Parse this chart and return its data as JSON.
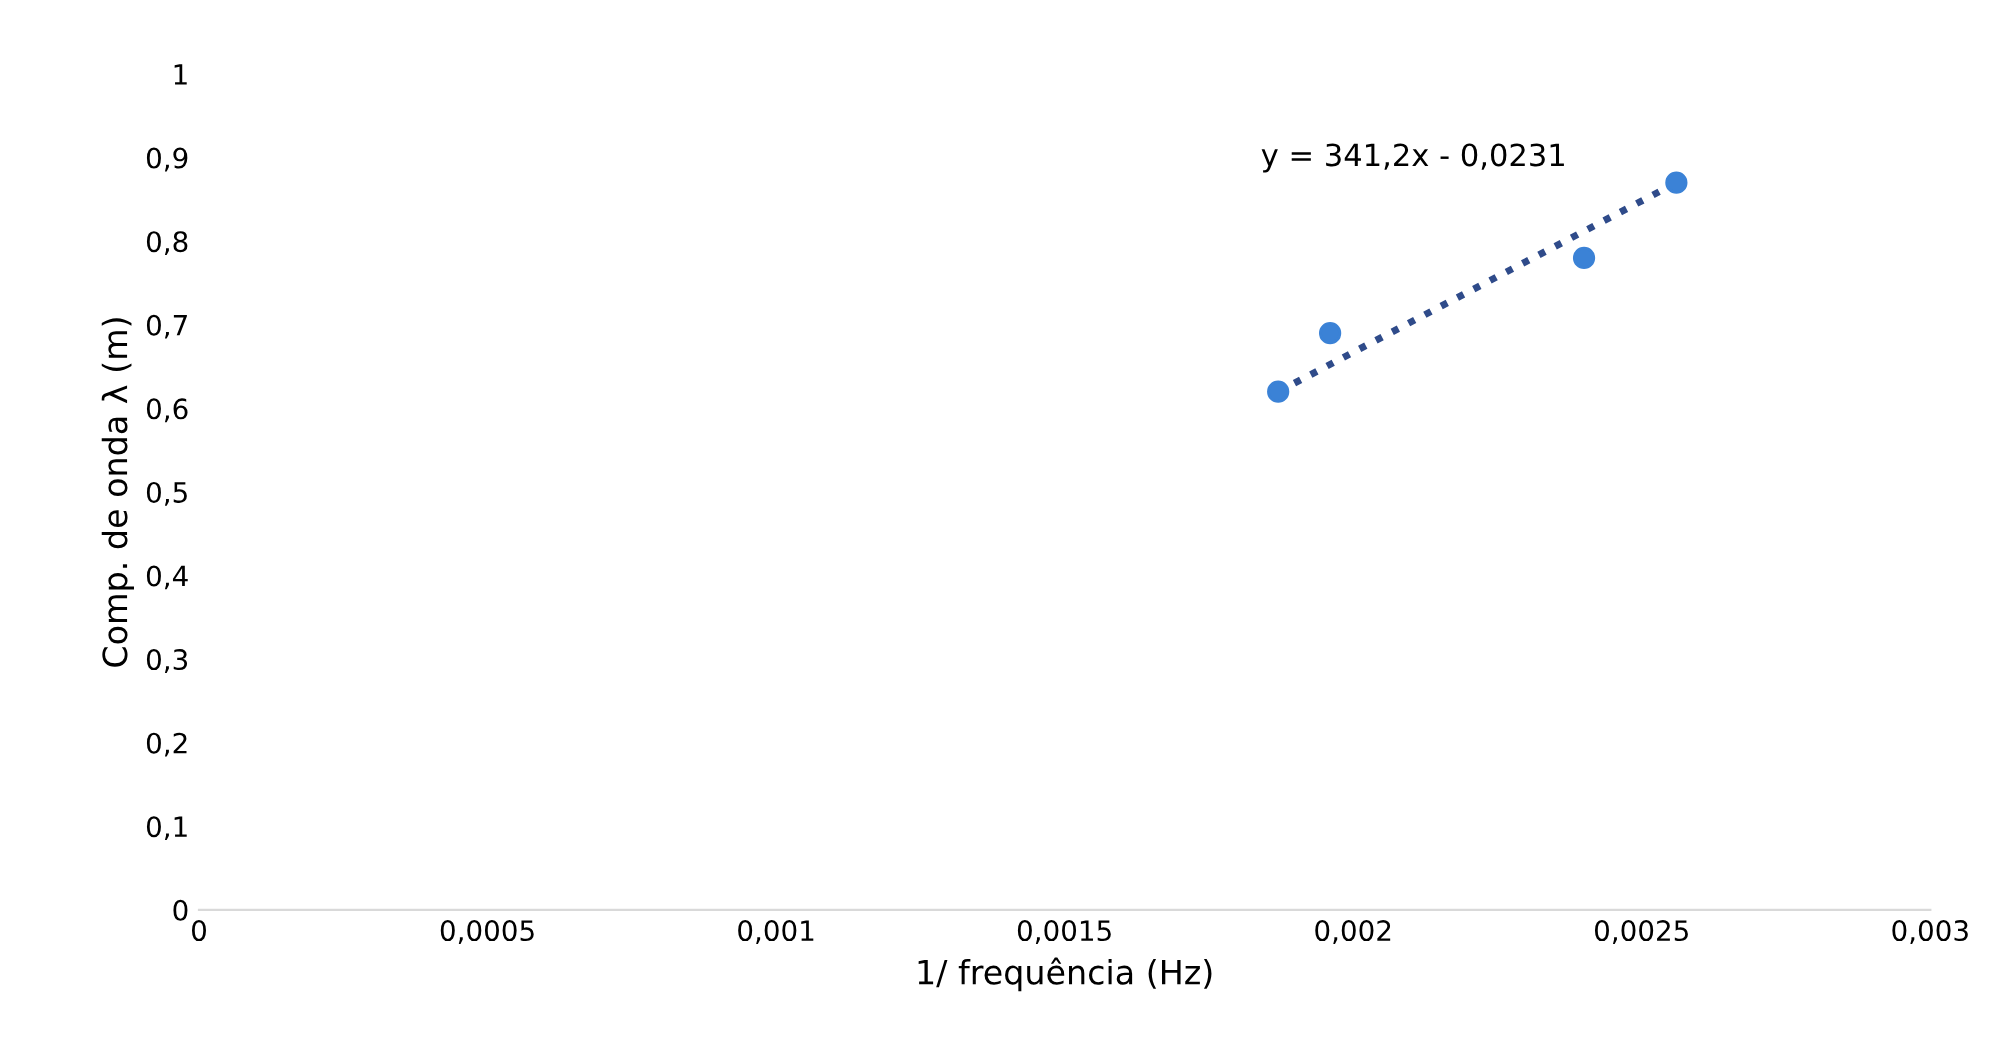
{
  "chart_data": {
    "type": "scatter",
    "xlabel": "1/ frequência (Hz)",
    "ylabel": "Comp. de onda λ (m)",
    "series": [
      {
        "color": "#3b82d6",
        "marker": "circle",
        "x": [
          0.00187,
          0.00196,
          0.0024,
          0.00256
        ],
        "values": [
          0.62,
          0.69,
          0.78,
          0.87
        ]
      },
      {
        "type": "line",
        "color": "#2f4b8a",
        "line_style": "dotted",
        "marker": "none",
        "x": [
          0.00187,
          0.00256
        ],
        "values": [
          0.62,
          0.87
        ]
      }
    ],
    "annotations": [
      "y = 341,2x - 0,0231"
    ],
    "xlim": [
      0,
      0.003
    ],
    "xticks": [
      0,
      {
        "value": 0.0005,
        "label": "0,0005"
      },
      {
        "value": 0.001,
        "label": "0,001"
      },
      {
        "value": 0.0015,
        "label": "0,0015"
      },
      {
        "value": 0.002,
        "label": "0,002"
      },
      {
        "value": 0.0025,
        "label": "0,0025"
      },
      {
        "value": 0.003,
        "label": "0,003"
      }
    ],
    "ylim": [
      0,
      1
    ],
    "yticks": [
      0,
      {
        "value": 0.1,
        "label": "0,1"
      },
      {
        "value": 0.2,
        "label": "0,2"
      },
      {
        "value": 0.3,
        "label": "0,3"
      },
      {
        "value": 0.4,
        "label": "0,4"
      },
      {
        "value": 0.5,
        "label": "0,5"
      },
      {
        "value": 0.6,
        "label": "0,6"
      },
      {
        "value": 0.7,
        "label": "0,7"
      },
      {
        "value": 0.8,
        "label": "0,8"
      },
      {
        "value": 0.9,
        "label": "0,9"
      },
      1
    ],
    "grid": false
  }
}
